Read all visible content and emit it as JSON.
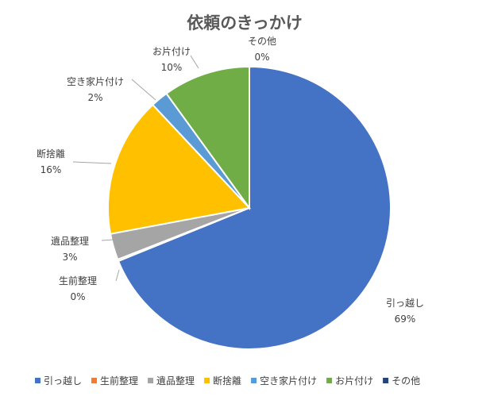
{
  "chart_data": {
    "type": "pie",
    "title": "依頼のきっかけ",
    "categories": [
      "引っ越し",
      "生前整理",
      "遺品整理",
      "断捨離",
      "空き家片付け",
      "お片付け",
      "その他"
    ],
    "values": [
      69,
      0.2,
      3,
      16,
      2,
      10,
      0
    ],
    "labels": [
      "69%",
      "0%",
      "3%",
      "16%",
      "2%",
      "10%",
      "0%"
    ],
    "colors": [
      "#4472c4",
      "#ed7d31",
      "#a5a5a5",
      "#ffc000",
      "#5b9bd5",
      "#70ad47",
      "#264478"
    ],
    "legend_position": "bottom",
    "start": "top, clockwise"
  }
}
